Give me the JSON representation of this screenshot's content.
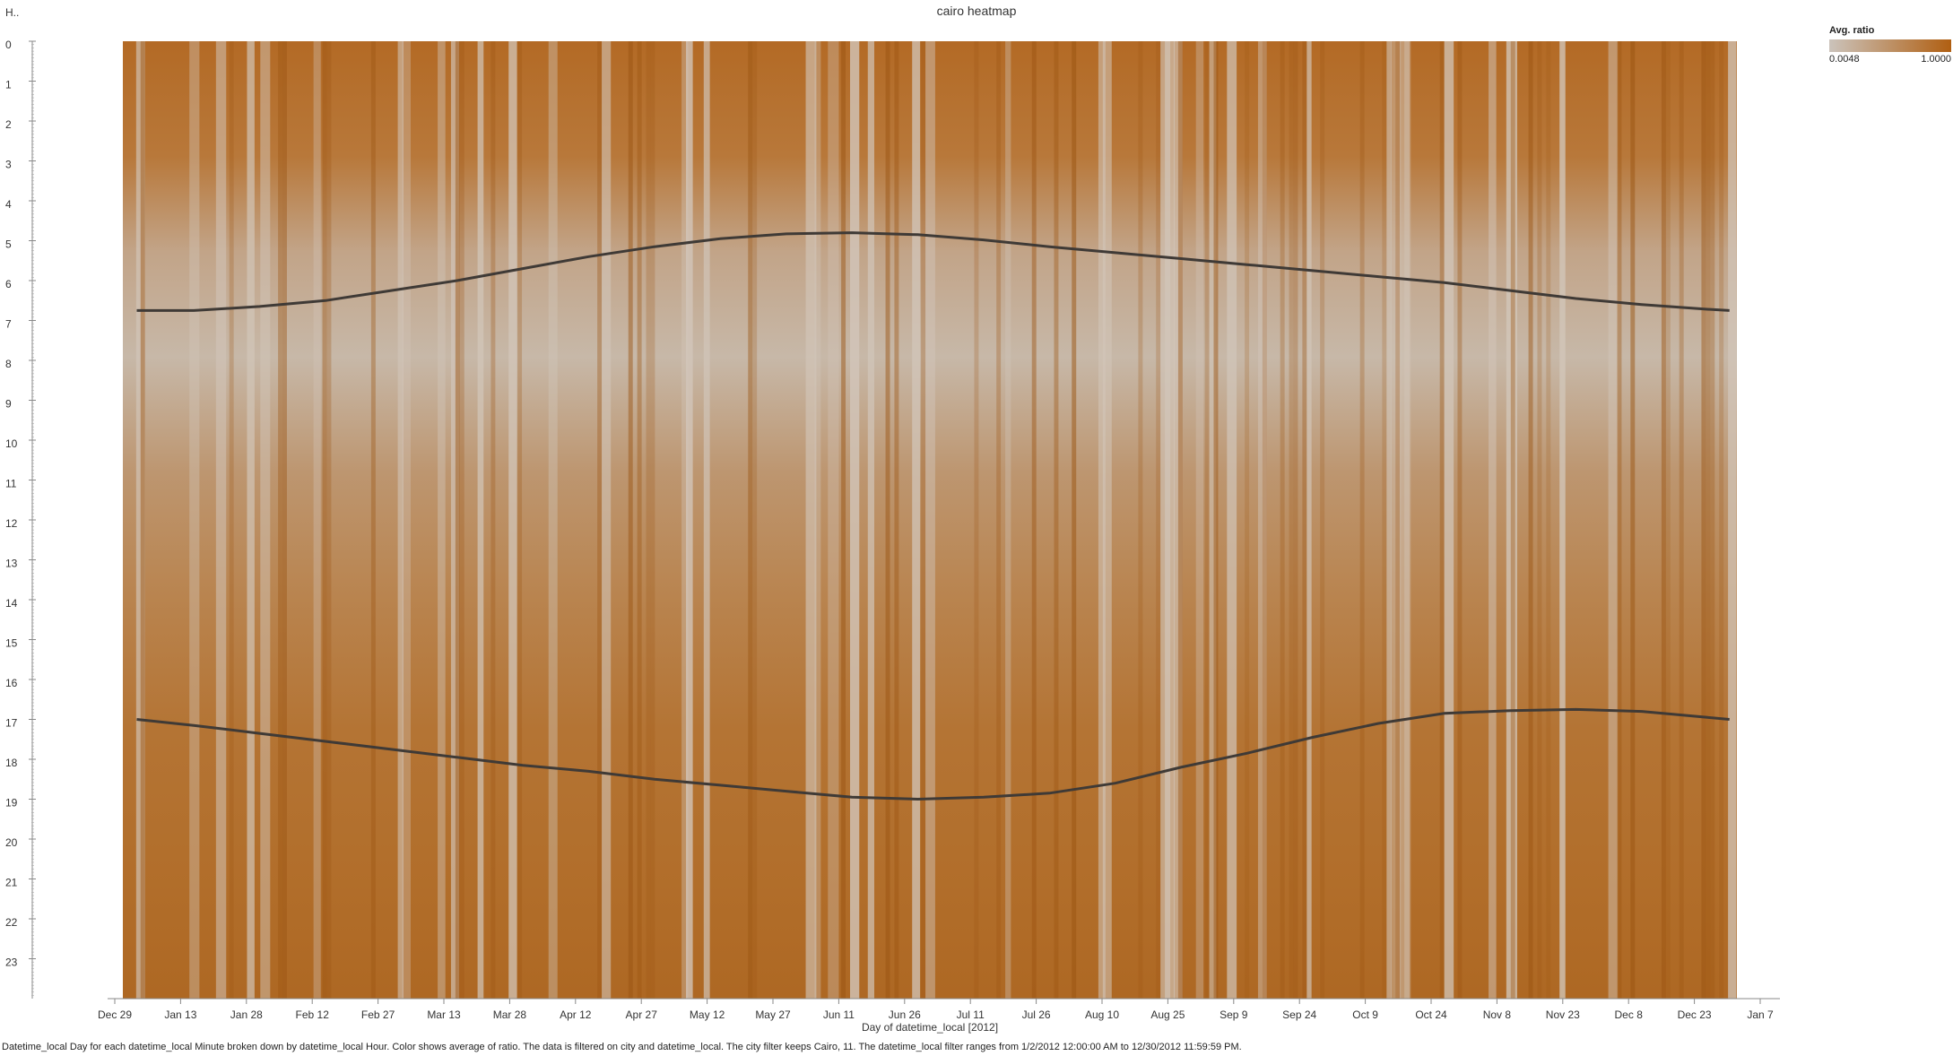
{
  "chart_data": {
    "type": "heatmap",
    "title": "cairo heatmap",
    "xlabel": "Day of datetime_local [2012]",
    "ylabel": "H..",
    "x_ticks": [
      "Dec 29",
      "Jan 13",
      "Jan 28",
      "Feb 12",
      "Feb 27",
      "Mar 13",
      "Mar 28",
      "Apr 12",
      "Apr 27",
      "May 12",
      "May 27",
      "Jun 11",
      "Jun 26",
      "Jul 11",
      "Jul 26",
      "Aug 10",
      "Aug 25",
      "Sep 9",
      "Sep 24",
      "Oct 9",
      "Oct 24",
      "Nov 8",
      "Nov 23",
      "Dec 8",
      "Dec 23",
      "Jan 7"
    ],
    "y_ticks": [
      "0",
      "1",
      "2",
      "3",
      "4",
      "5",
      "6",
      "7",
      "8",
      "9",
      "10",
      "11",
      "12",
      "13",
      "14",
      "15",
      "16",
      "17",
      "18",
      "19",
      "20",
      "21",
      "22",
      "23"
    ],
    "color_legend": {
      "title": "Avg. ratio",
      "min_label": "0.0048",
      "max_label": "1.0000",
      "min_color": "#cbc3bb",
      "max_color": "#b05f12"
    },
    "sunrise_curve": {
      "day_of_year": [
        2,
        15,
        30,
        45,
        60,
        75,
        90,
        105,
        120,
        135,
        150,
        165,
        180,
        195,
        210,
        225,
        240,
        255,
        270,
        285,
        300,
        315,
        330,
        345,
        360,
        365
      ],
      "hour": [
        6.75,
        6.75,
        6.65,
        6.5,
        6.25,
        6.0,
        5.7,
        5.4,
        5.15,
        4.95,
        4.83,
        4.8,
        4.85,
        4.98,
        5.15,
        5.3,
        5.45,
        5.6,
        5.75,
        5.9,
        6.05,
        6.25,
        6.45,
        6.6,
        6.72,
        6.75
      ]
    },
    "sunset_curve": {
      "day_of_year": [
        2,
        15,
        30,
        45,
        60,
        75,
        90,
        105,
        120,
        135,
        150,
        165,
        180,
        195,
        210,
        225,
        240,
        255,
        270,
        285,
        300,
        315,
        330,
        345,
        360,
        365
      ],
      "hour": [
        17.0,
        17.15,
        17.35,
        17.55,
        17.75,
        17.95,
        18.15,
        18.3,
        18.5,
        18.65,
        18.8,
        18.95,
        19.0,
        18.95,
        18.85,
        18.6,
        18.2,
        17.85,
        17.45,
        17.1,
        16.85,
        16.78,
        16.75,
        16.8,
        16.95,
        17.0
      ]
    }
  },
  "footer_text": "Datetime_local Day for each datetime_local Minute broken down by datetime_local Hour. Color shows average of ratio. The data is filtered on city and datetime_local. The city filter keeps Cairo, 11. The datetime_local filter ranges from 1/2/2012 12:00:00 AM to 12/30/2012 11:59:59 PM."
}
